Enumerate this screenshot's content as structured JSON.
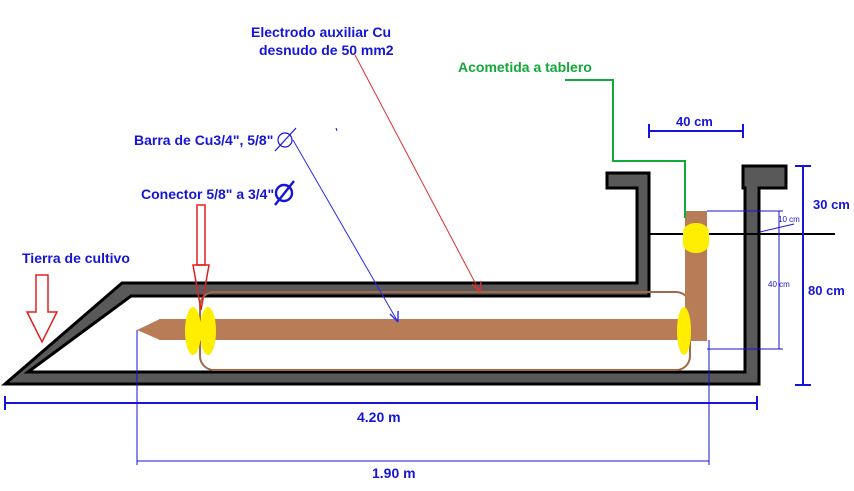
{
  "labels": {
    "electrode_line1": "Electrodo auxiliar Cu",
    "electrode_line2": "desnudo de 50 mm2",
    "acometida": "Acometida a tablero",
    "barra": "Barra de Cu3/4\", 5/8\"",
    "conector": "Conector 5/8\" a 3/4\"",
    "tierra": "Tierra de cultivo"
  },
  "dimensions": {
    "top_width": "40 cm",
    "right_top": "30 cm",
    "right_bottom": "80 cm",
    "inner_small": "10 cm",
    "inner_vertical": "40 cm",
    "total_length": "4.20 m",
    "rod_length": "1.90 m"
  },
  "colors": {
    "copper": "#b87c56",
    "connector": "#ffee00",
    "text_blue": "#1515d8",
    "text_green": "#12a83a",
    "pit": "#595959",
    "leader_red": "#e03030",
    "leader_blue": "#2a2aee",
    "leader_green": "#12a83a",
    "arrow_red": "#e02020"
  }
}
